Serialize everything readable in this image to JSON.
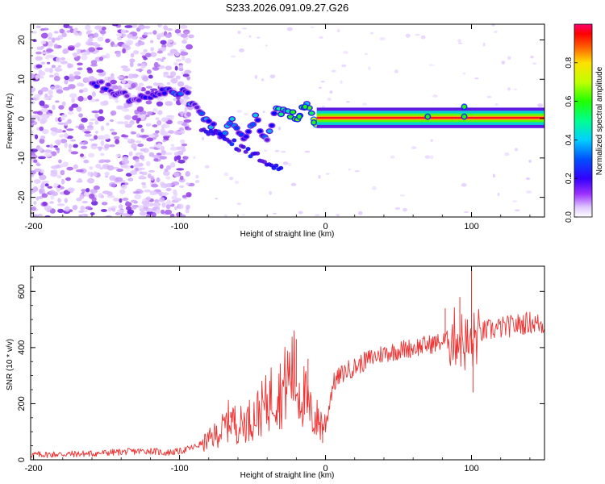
{
  "title": "S233.2026.091.09.27.G26",
  "chart_data": [
    {
      "type": "heatmap",
      "xlabel": "Height of straight line (km)",
      "ylabel": "Frequency (Hz)",
      "xlim": [
        -202,
        150
      ],
      "ylim": [
        -25,
        24
      ],
      "xticks": [
        -200,
        -100,
        0,
        100
      ],
      "yticks": [
        -20,
        -10,
        0,
        10,
        20
      ],
      "colorbar": {
        "label": "Normalized spectral amplitude",
        "range": [
          0,
          1
        ],
        "ticks": [
          0.0,
          0.2,
          0.4,
          0.6,
          0.8
        ],
        "colors": [
          "#ffffff",
          "#d8b8ff",
          "#8a2be2",
          "#3a00e0",
          "#0000ff",
          "#00c8ff",
          "#00ff80",
          "#00ff00",
          "#c8ff00",
          "#ffff00",
          "#ff8000",
          "#ff0000",
          "#ff0066"
        ]
      },
      "ridge": [
        {
          "x": -160,
          "f": 9,
          "a": 0.25
        },
        {
          "x": -150,
          "f": 8,
          "a": 0.3
        },
        {
          "x": -140,
          "f": 6,
          "a": 0.28
        },
        {
          "x": -130,
          "f": 5,
          "a": 0.25
        },
        {
          "x": -120,
          "f": 6,
          "a": 0.27
        },
        {
          "x": -105,
          "f": 7,
          "a": 0.3
        },
        {
          "x": -95,
          "f": 6,
          "a": 0.35
        },
        {
          "x": -88,
          "f": 2,
          "a": 0.3
        },
        {
          "x": -80,
          "f": -1,
          "a": 0.35
        },
        {
          "x": -72,
          "f": -4,
          "a": 0.3
        },
        {
          "x": -64,
          "f": -1,
          "a": 0.35
        },
        {
          "x": -56,
          "f": -5,
          "a": 0.3
        },
        {
          "x": -48,
          "f": 0,
          "a": 0.35
        },
        {
          "x": -40,
          "f": -6,
          "a": 0.3
        },
        {
          "x": -35,
          "f": 2,
          "a": 0.4
        },
        {
          "x": -28,
          "f": 2,
          "a": 0.45
        },
        {
          "x": -20,
          "f": 0,
          "a": 0.55
        },
        {
          "x": -14,
          "f": 4,
          "a": 0.5
        },
        {
          "x": -8,
          "f": -1,
          "a": 0.6
        },
        {
          "x": 0,
          "f": 0,
          "a": 0.65
        },
        {
          "x": 20,
          "f": 0,
          "a": 0.8
        },
        {
          "x": 60,
          "f": 0,
          "a": 0.85
        },
        {
          "x": 100,
          "f": 0,
          "a": 0.85
        },
        {
          "x": 150,
          "f": 0,
          "a": 0.85
        }
      ]
    },
    {
      "type": "line",
      "xlabel": "Height of straight line (km)",
      "ylabel": "SNR (10 * v/v)",
      "xlim": [
        -202,
        150
      ],
      "ylim": [
        0,
        690
      ],
      "xticks": [
        -200,
        -100,
        0,
        100
      ],
      "yticks": [
        0,
        200,
        400,
        600
      ],
      "color": "#ee3333",
      "series": [
        {
          "name": "SNR",
          "x": [
            -202,
            -180,
            -160,
            -140,
            -120,
            -110,
            -100,
            -90,
            -80,
            -70,
            -65,
            -60,
            -50,
            -40,
            -35,
            -30,
            -25,
            -22,
            -20,
            -15,
            -10,
            -5,
            0,
            5,
            10,
            15,
            20,
            30,
            40,
            50,
            60,
            70,
            80,
            90,
            95,
            100,
            102,
            105,
            110,
            120,
            130,
            140,
            150
          ],
          "y": [
            18,
            20,
            22,
            28,
            32,
            25,
            30,
            45,
            70,
            110,
            150,
            120,
            150,
            200,
            250,
            240,
            300,
            320,
            260,
            230,
            160,
            140,
            120,
            270,
            300,
            320,
            330,
            360,
            380,
            390,
            400,
            410,
            420,
            440,
            420,
            400,
            430,
            450,
            460,
            470,
            480,
            490,
            480
          ]
        }
      ],
      "spikes": [
        {
          "x": -65,
          "y": 170
        },
        {
          "x": -38,
          "y": 240
        },
        {
          "x": -25,
          "y": 330
        },
        {
          "x": -20,
          "y": 430
        },
        {
          "x": -12,
          "y": 360
        },
        {
          "x": -2,
          "y": 60
        },
        {
          "x": 82,
          "y": 540
        },
        {
          "x": 92,
          "y": 580
        },
        {
          "x": 100,
          "y": 690
        },
        {
          "x": 101,
          "y": 240
        }
      ]
    }
  ]
}
